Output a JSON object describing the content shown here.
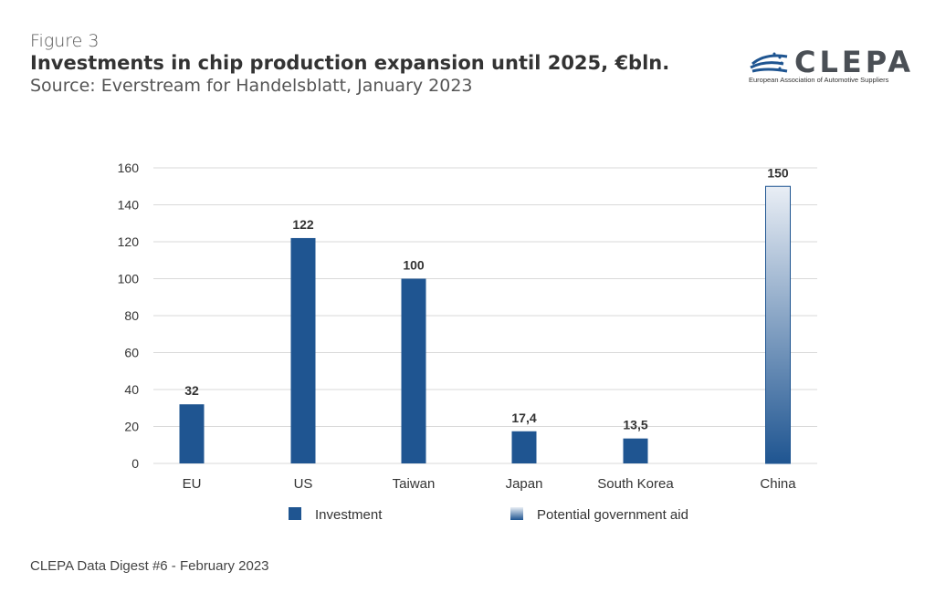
{
  "header": {
    "figure_label": "Figure 3",
    "title": "Investments in chip production expansion until 2025, €bln.",
    "source": "Source: Everstream for Handelsblatt, January 2023"
  },
  "logo": {
    "name": "CLEPA",
    "subtitle": "European Association of Automotive Suppliers"
  },
  "footer": "CLEPA Data Digest #6 - February 2023",
  "colors": {
    "investment": "#1f5591",
    "aid_top": "#e9eef5",
    "aid_bottom": "#1f5591",
    "grid": "#d9d9d9"
  },
  "chart_data": {
    "type": "bar",
    "categories": [
      "EU",
      "US",
      "Taiwan",
      "Japan",
      "South Korea",
      "China"
    ],
    "series": [
      {
        "name": "Investment",
        "values": [
          32,
          122,
          100,
          17.4,
          13.5,
          null
        ],
        "labels": [
          "32",
          "122",
          "100",
          "17,4",
          "13,5",
          ""
        ]
      },
      {
        "name": "Potential government aid",
        "values": [
          null,
          null,
          null,
          null,
          null,
          150
        ],
        "labels": [
          "",
          "",
          "",
          "",
          "",
          "150"
        ]
      }
    ],
    "ylim": [
      0,
      160
    ],
    "yticks": [
      0,
      20,
      40,
      60,
      80,
      100,
      120,
      140,
      160
    ],
    "grid": true,
    "legend_position": "bottom"
  }
}
